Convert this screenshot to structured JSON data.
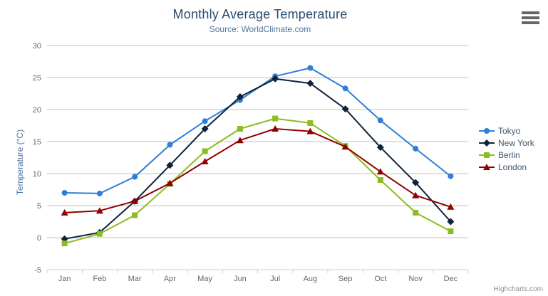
{
  "chart": {
    "title": "Monthly Average Temperature",
    "subtitle": "Source: WorldClimate.com",
    "credits": "Highcharts.com",
    "menu_icon": "hamburger-menu"
  },
  "chart_data": {
    "type": "line",
    "title": "Monthly Average Temperature",
    "subtitle": "Source: WorldClimate.com",
    "categories": [
      "Jan",
      "Feb",
      "Mar",
      "Apr",
      "May",
      "Jun",
      "Jul",
      "Aug",
      "Sep",
      "Oct",
      "Nov",
      "Dec"
    ],
    "series": [
      {
        "name": "Tokyo",
        "color": "#2f7ed8",
        "marker": "circle",
        "values": [
          7.0,
          6.9,
          9.5,
          14.5,
          18.2,
          21.5,
          25.2,
          26.5,
          23.3,
          18.3,
          13.9,
          9.6
        ]
      },
      {
        "name": "New York",
        "color": "#0d233a",
        "marker": "diamond",
        "values": [
          -0.2,
          0.8,
          5.7,
          11.3,
          17.0,
          22.0,
          24.8,
          24.1,
          20.1,
          14.1,
          8.6,
          2.5
        ]
      },
      {
        "name": "Berlin",
        "color": "#8bbc21",
        "marker": "square",
        "values": [
          -0.9,
          0.6,
          3.5,
          8.4,
          13.5,
          17.0,
          18.6,
          17.9,
          14.3,
          9.0,
          3.9,
          1.0
        ]
      },
      {
        "name": "London",
        "color": "#910000",
        "marker": "triangle",
        "values": [
          3.9,
          4.2,
          5.7,
          8.5,
          11.9,
          15.2,
          17.0,
          16.6,
          14.2,
          10.3,
          6.6,
          4.8
        ]
      }
    ],
    "xlabel": "",
    "ylabel": "Temperature (°C)",
    "ylim": [
      -5,
      30
    ],
    "ytick_values": [
      -5,
      0,
      5,
      10,
      15,
      20,
      25,
      30
    ],
    "grid": true,
    "legend_position": "right",
    "colors": {
      "title_text": "#274b6d",
      "subtitle_text": "#4d759e",
      "axis_label_text": "#666666",
      "legend_text": "#3e576f",
      "grid_line": "#c0c0c0",
      "axis_line": "#c0d0e0",
      "credits_text": "#909090"
    }
  }
}
